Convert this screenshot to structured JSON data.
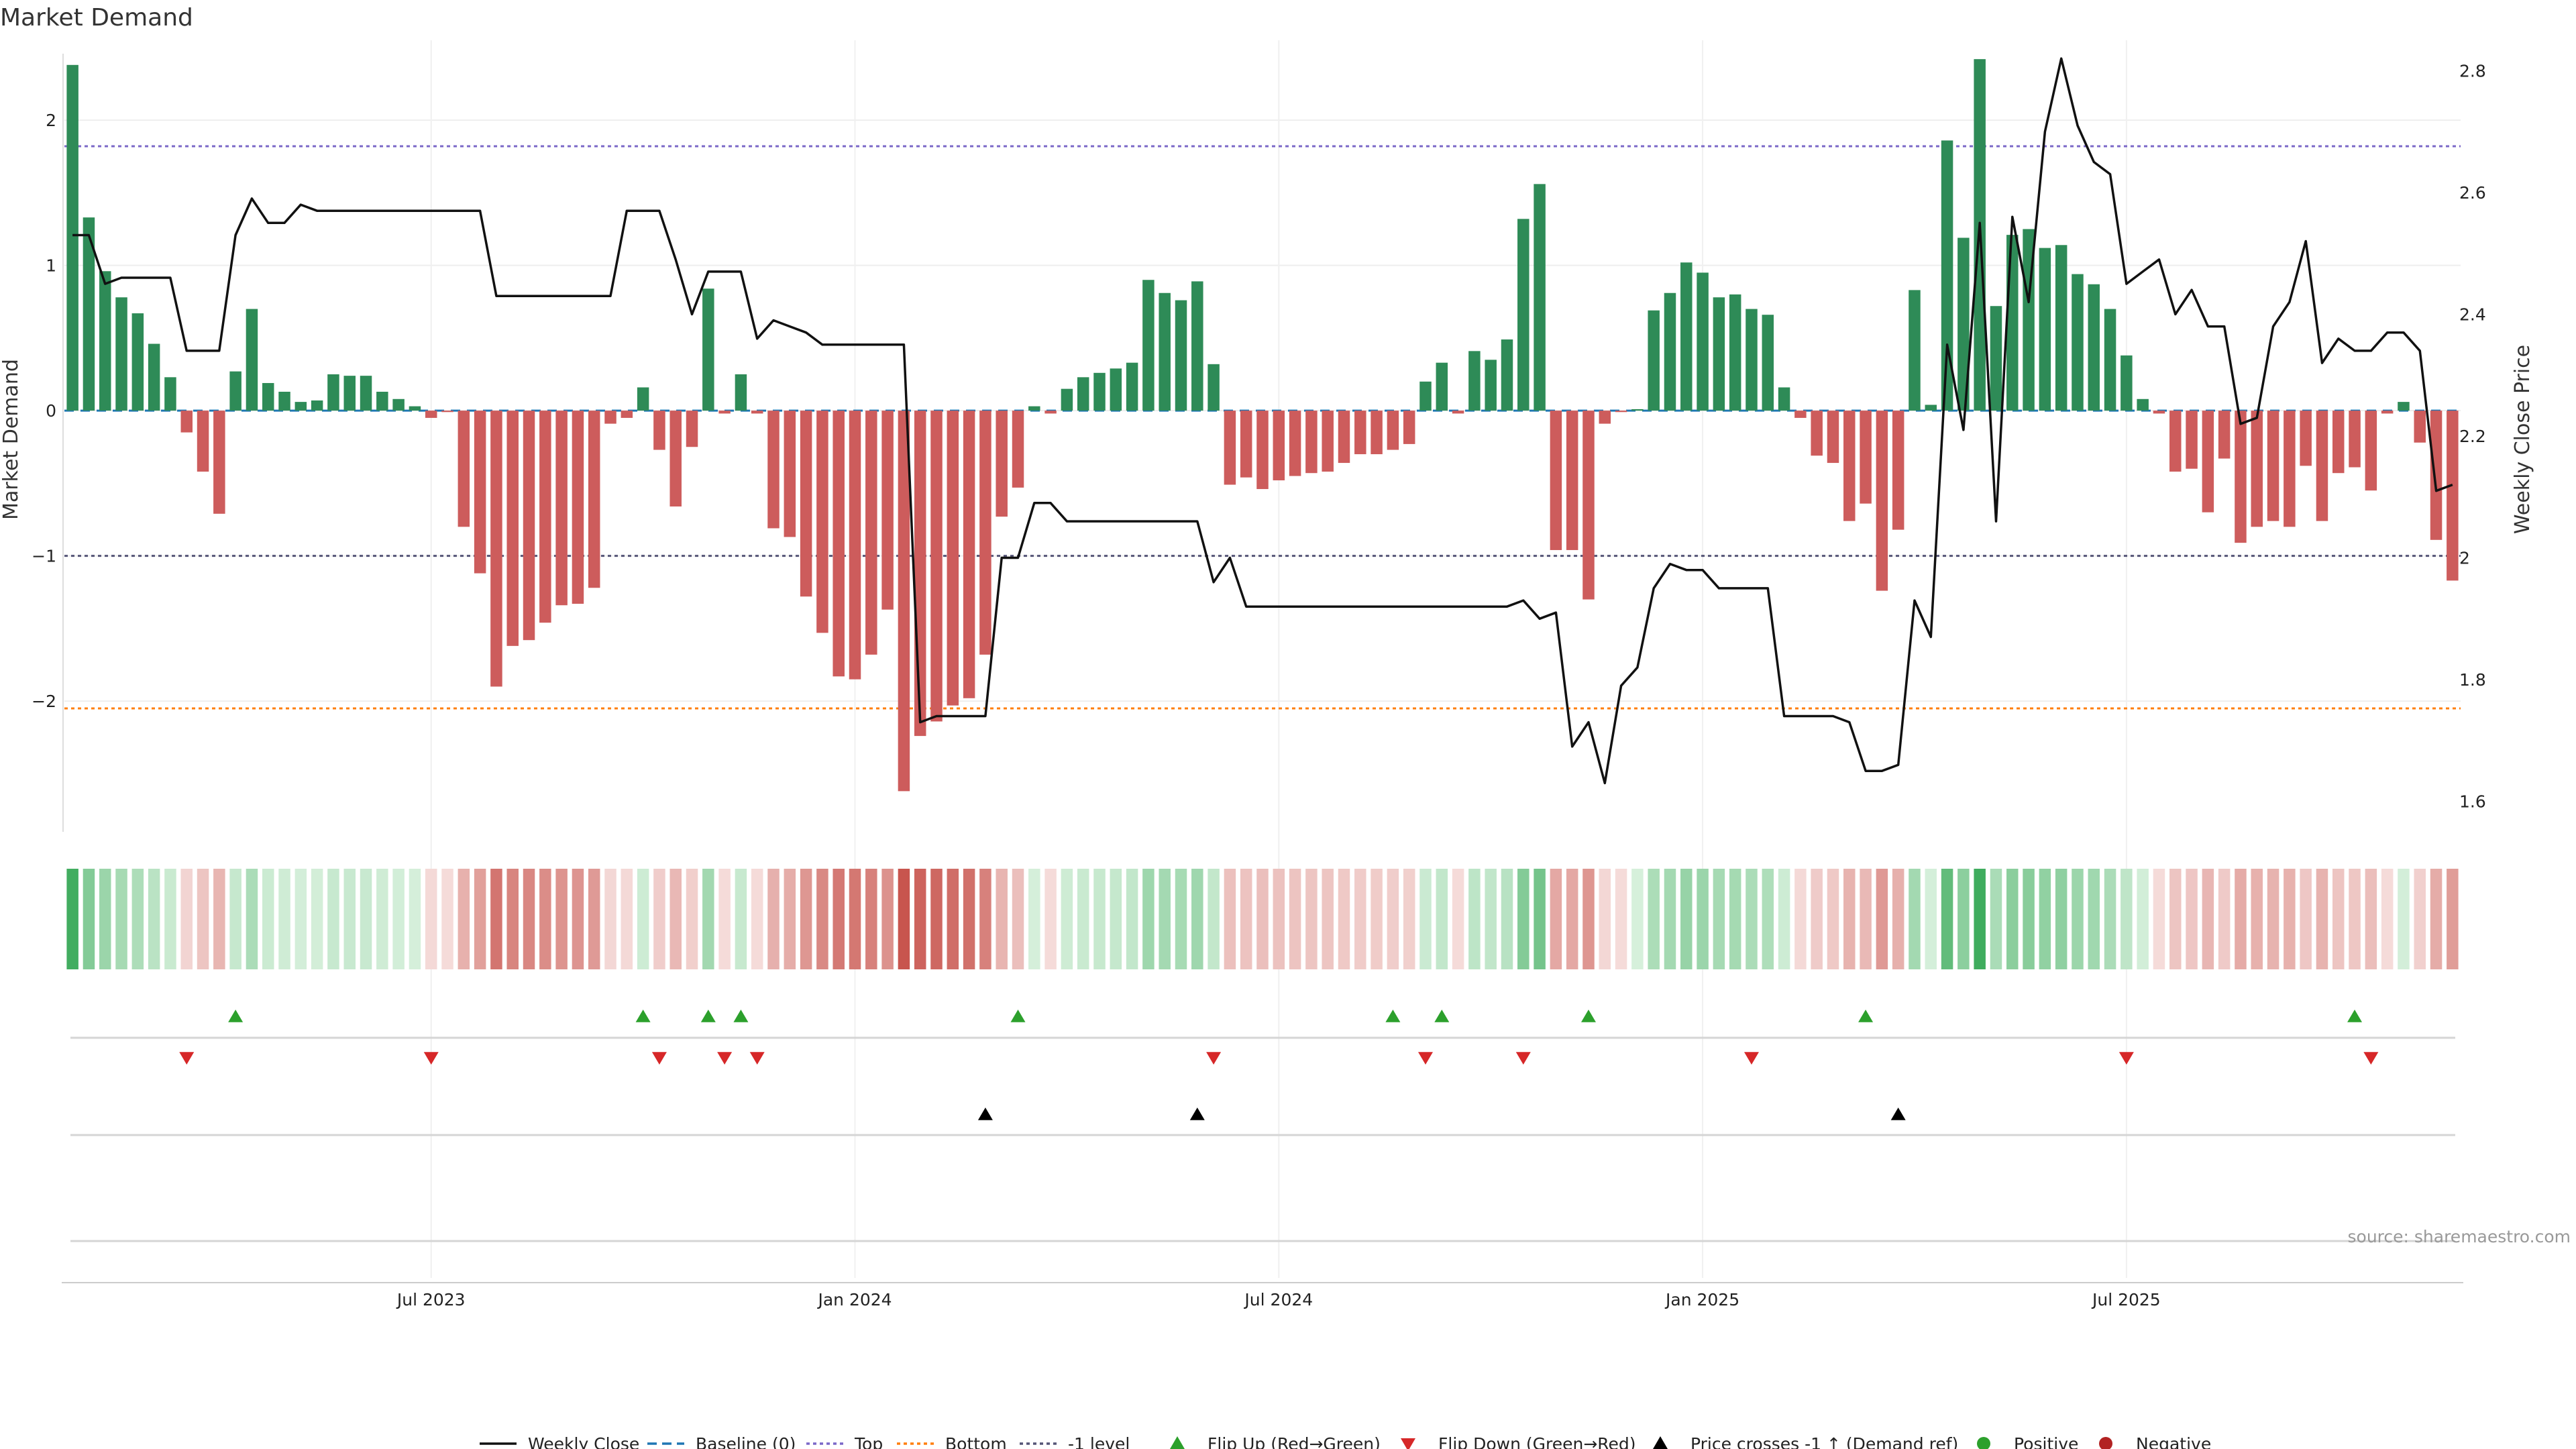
{
  "chart_data": {
    "type": "bar",
    "title": "Market Demand",
    "ylabel": "Market Demand",
    "y2label": "Weekly Close Price",
    "ylim": [
      -2.9,
      2.55
    ],
    "y2lim": [
      1.55,
      2.85
    ],
    "yticks": [
      {
        "v": 2,
        "label": "2"
      },
      {
        "v": 1,
        "label": "1"
      },
      {
        "v": 0,
        "label": "0"
      },
      {
        "v": -1,
        "label": "−1"
      },
      {
        "v": -2,
        "label": "−2"
      }
    ],
    "y2ticks": [
      {
        "v": 2.8,
        "label": "2.8"
      },
      {
        "v": 2.6,
        "label": "2.6"
      },
      {
        "v": 2.4,
        "label": "2.4"
      },
      {
        "v": 2.2,
        "label": "2.2"
      },
      {
        "v": 2.0,
        "label": "2"
      },
      {
        "v": 1.8,
        "label": "1.8"
      },
      {
        "v": 1.6,
        "label": "1.6"
      }
    ],
    "xticks": [
      {
        "week": 22,
        "label": "Jul 2023"
      },
      {
        "week": 48,
        "label": "Jan 2024"
      },
      {
        "week": 74,
        "label": "Jul 2024"
      },
      {
        "week": 100,
        "label": "Jan 2025"
      },
      {
        "week": 126,
        "label": "Jul 2025"
      }
    ],
    "reference_lines": {
      "top": 1.82,
      "bottom": -2.05,
      "minus_one": -1.0,
      "baseline": 0
    },
    "demand": [
      2.38,
      1.33,
      0.96,
      0.78,
      0.67,
      0.46,
      0.23,
      -0.15,
      -0.42,
      -0.71,
      0.27,
      0.7,
      0.19,
      0.13,
      0.06,
      0.07,
      0.25,
      0.24,
      0.24,
      0.13,
      0.08,
      0.03,
      -0.05,
      -0.01,
      -0.8,
      -1.12,
      -1.9,
      -1.62,
      -1.58,
      -1.46,
      -1.34,
      -1.33,
      -1.22,
      -0.09,
      -0.05,
      0.16,
      -0.27,
      -0.66,
      -0.25,
      0.84,
      -0.02,
      0.25,
      -0.02,
      -0.81,
      -0.87,
      -1.28,
      -1.53,
      -1.83,
      -1.85,
      -1.68,
      -1.37,
      -2.62,
      -2.24,
      -2.14,
      -2.03,
      -1.98,
      -1.68,
      -0.73,
      -0.53,
      0.03,
      -0.02,
      0.15,
      0.23,
      0.26,
      0.29,
      0.33,
      0.9,
      0.81,
      0.76,
      0.89,
      0.32,
      -0.51,
      -0.46,
      -0.54,
      -0.48,
      -0.45,
      -0.43,
      -0.42,
      -0.36,
      -0.3,
      -0.3,
      -0.27,
      -0.23,
      0.2,
      0.33,
      -0.02,
      0.41,
      0.35,
      0.49,
      1.32,
      1.56,
      -0.96,
      -0.96,
      -1.3,
      -0.09,
      -0.01,
      0.01,
      0.69,
      0.81,
      1.02,
      0.95,
      0.78,
      0.8,
      0.7,
      0.66,
      0.16,
      -0.05,
      -0.31,
      -0.36,
      -0.76,
      -0.64,
      -1.24,
      -0.82,
      0.83,
      0.04,
      1.86,
      1.19,
      2.42,
      0.72,
      1.21,
      1.25,
      1.12,
      1.14,
      0.94,
      0.87,
      0.7,
      0.38,
      0.08,
      -0.02,
      -0.42,
      -0.4,
      -0.7,
      -0.33,
      -0.91,
      -0.8,
      -0.76,
      -0.8,
      -0.38,
      -0.76,
      -0.43,
      -0.39,
      -0.55,
      -0.02,
      0.06,
      -0.22,
      -0.89,
      -1.17
    ],
    "weekly_close": [
      2.53,
      2.53,
      2.45,
      2.46,
      2.46,
      2.46,
      2.46,
      2.34,
      2.34,
      2.34,
      2.53,
      2.59,
      2.55,
      2.55,
      2.58,
      2.57,
      2.57,
      2.57,
      2.57,
      2.57,
      2.57,
      2.57,
      2.57,
      2.57,
      2.57,
      2.57,
      2.43,
      2.43,
      2.43,
      2.43,
      2.43,
      2.43,
      2.43,
      2.43,
      2.57,
      2.57,
      2.57,
      2.49,
      2.4,
      2.47,
      2.47,
      2.47,
      2.36,
      2.39,
      2.38,
      2.37,
      2.35,
      2.35,
      2.35,
      2.35,
      2.35,
      2.35,
      1.73,
      1.74,
      1.74,
      1.74,
      1.74,
      2.0,
      2.0,
      2.09,
      2.09,
      2.06,
      2.06,
      2.06,
      2.06,
      2.06,
      2.06,
      2.06,
      2.06,
      2.06,
      1.96,
      2.0,
      1.92,
      1.92,
      1.92,
      1.92,
      1.92,
      1.92,
      1.92,
      1.92,
      1.92,
      1.92,
      1.92,
      1.92,
      1.92,
      1.92,
      1.92,
      1.92,
      1.92,
      1.93,
      1.9,
      1.91,
      1.69,
      1.73,
      1.63,
      1.79,
      1.82,
      1.95,
      1.99,
      1.98,
      1.98,
      1.95,
      1.95,
      1.95,
      1.95,
      1.74,
      1.74,
      1.74,
      1.74,
      1.73,
      1.65,
      1.65,
      1.66,
      1.93,
      1.87,
      2.35,
      2.21,
      2.55,
      2.06,
      2.56,
      2.42,
      2.7,
      2.82,
      2.71,
      2.65,
      2.63,
      2.45,
      2.47,
      2.49,
      2.4,
      2.44,
      2.38,
      2.38,
      2.22,
      2.23,
      2.38,
      2.42,
      2.52,
      2.32,
      2.36,
      2.34,
      2.34,
      2.37,
      2.37,
      2.34,
      2.11,
      2.12
    ],
    "flip_up_weeks": [
      10,
      35,
      39,
      41,
      58,
      81,
      84,
      93,
      110,
      140
    ],
    "flip_down_weeks": [
      7,
      22,
      36,
      40,
      42,
      70,
      83,
      89,
      103,
      126,
      141
    ],
    "price_cross_weeks": [
      56,
      69,
      112
    ],
    "series": [
      {
        "name": "Weekly Close",
        "style": "line",
        "color": "#111111"
      },
      {
        "name": "Baseline (0)",
        "style": "dashed",
        "color": "#1f77b4"
      },
      {
        "name": "Top",
        "style": "dotted",
        "color": "#7b68c8"
      },
      {
        "name": "Bottom",
        "style": "dotted",
        "color": "#ff7f0e"
      },
      {
        "name": "-1 level",
        "style": "dotted",
        "color": "#555577"
      },
      {
        "name": "Flip Up (Red→Green)",
        "style": "triangle-up",
        "color": "#2ca02c"
      },
      {
        "name": "Flip Down (Green→Red)",
        "style": "triangle-down",
        "color": "#d62728"
      },
      {
        "name": "Price crosses -1 ↑ (Demand ref)",
        "style": "triangle-up",
        "color": "#000000"
      },
      {
        "name": "Positive",
        "style": "dot",
        "color": "#2ca02c"
      },
      {
        "name": "Negative",
        "style": "dot",
        "color": "#b22222"
      }
    ],
    "source": "source: sharemaestro.com"
  },
  "colors": {
    "positive": "#2e8b57",
    "negative": "#cd5c5c",
    "price": "#111111"
  }
}
